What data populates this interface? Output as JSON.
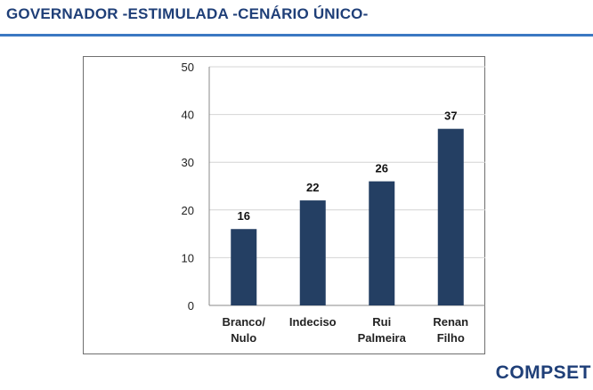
{
  "slide": {
    "title": "GOVERNADOR -ESTIMULADA  -CENÁRIO  ÚNICO-",
    "brand": "COMPSET"
  },
  "colors": {
    "bar": "#243f63",
    "title": "#1f3f78",
    "rule": "#3b78c2",
    "grid": "#d4d4d4"
  },
  "chart_data": {
    "type": "bar",
    "categories": [
      [
        "Branco/",
        "Nulo"
      ],
      [
        "Indeciso"
      ],
      [
        "Rui",
        "Palmeira"
      ],
      [
        "Renan",
        "Filho"
      ]
    ],
    "values": [
      16,
      22,
      26,
      37
    ],
    "value_labels": [
      "16",
      "22",
      "26",
      "37"
    ],
    "ylim": [
      0,
      50
    ],
    "yticks": [
      0,
      10,
      20,
      30,
      40,
      50
    ],
    "grid": true,
    "legend": "none",
    "title": "",
    "xlabel": "",
    "ylabel": ""
  }
}
